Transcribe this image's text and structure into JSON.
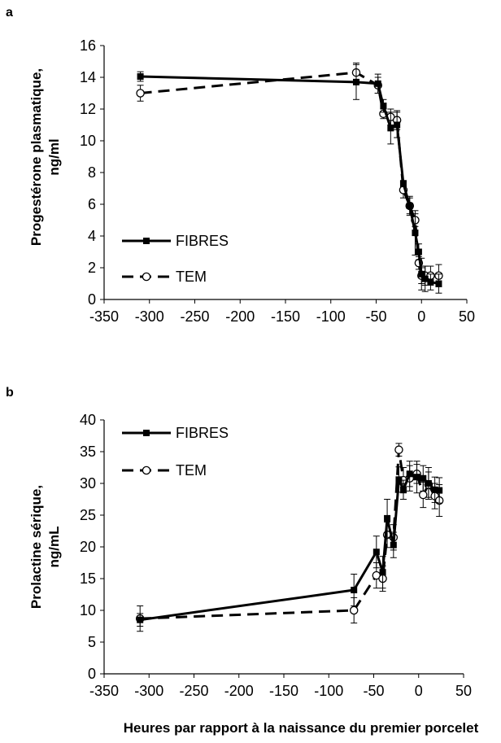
{
  "chart_data": [
    {
      "type": "line",
      "panel_label": "a",
      "ylabel_line1": "Progestérone plasmatique,",
      "ylabel_line2": "ng/ml",
      "xlabel": "",
      "xlim": [
        -350,
        50
      ],
      "ylim": [
        0,
        16
      ],
      "xticks": [
        -350,
        -300,
        -250,
        -200,
        -150,
        -100,
        -50,
        0,
        50
      ],
      "yticks": [
        0,
        2,
        4,
        6,
        8,
        10,
        12,
        14,
        16
      ],
      "grid": false,
      "legend_position": "bottom-left",
      "series": [
        {
          "name": "FIBRES",
          "style": "solid",
          "marker": "filled-square",
          "color": "#000000",
          "x": [
            -310,
            -72,
            -48,
            -42,
            -34,
            -27,
            -20,
            -13,
            -7,
            -3,
            0,
            4,
            10,
            19
          ],
          "y": [
            14.05,
            13.7,
            13.6,
            12.2,
            10.8,
            11.0,
            7.3,
            5.9,
            4.2,
            3.0,
            1.6,
            1.3,
            1.1,
            1.0
          ],
          "err": [
            0.3,
            1.1,
            0.6,
            0.4,
            1.0,
            0.8,
            0.2,
            0.6,
            1.4,
            0.5,
            1.0,
            0.8,
            0.5,
            0.6
          ]
        },
        {
          "name": "TEM",
          "style": "dashed",
          "marker": "open-circle",
          "color": "#000000",
          "x": [
            -310,
            -72,
            -48,
            -42,
            -34,
            -27,
            -20,
            -13,
            -7,
            -3,
            0,
            4,
            10,
            19
          ],
          "y": [
            13.0,
            14.3,
            13.5,
            11.7,
            11.5,
            11.3,
            6.9,
            5.9,
            5.0,
            2.3,
            1.5,
            1.5,
            1.5,
            1.5
          ],
          "err": [
            0.5,
            0.6,
            0.5,
            0.3,
            0.5,
            0.6,
            0.5,
            0.5,
            0.4,
            0.4,
            0.5,
            0.6,
            0.6,
            0.7
          ]
        }
      ]
    },
    {
      "type": "line",
      "panel_label": "b",
      "ylabel_line1": "Prolactine sérique,",
      "ylabel_line2": "ng/mL",
      "xlabel": "Heures par rapport à la naissance du premier porcelet",
      "xlim": [
        -350,
        50
      ],
      "ylim": [
        0,
        40
      ],
      "xticks": [
        -350,
        -300,
        -250,
        -200,
        -150,
        -100,
        -50,
        0,
        50
      ],
      "yticks": [
        0,
        5,
        10,
        15,
        20,
        25,
        30,
        35,
        40
      ],
      "grid": false,
      "legend_position": "top-left",
      "series": [
        {
          "name": "FIBRES",
          "style": "solid",
          "marker": "filled-square",
          "color": "#000000",
          "x": [
            -310,
            -72,
            -47,
            -40,
            -35,
            -28,
            -22,
            -17,
            -10,
            -2,
            5,
            11,
            18,
            23
          ],
          "y": [
            8.5,
            13.2,
            19.2,
            16.0,
            24.5,
            20.3,
            30.6,
            29.0,
            31.5,
            31.0,
            30.8,
            30.0,
            29.0,
            28.9
          ],
          "err": [
            1.0,
            2.5,
            2.5,
            2.5,
            3.0,
            2.0,
            2.0,
            1.5,
            2.0,
            2.5,
            2.0,
            2.5,
            2.0,
            2.0
          ]
        },
        {
          "name": "TEM",
          "style": "dashed",
          "marker": "open-circle",
          "color": "#000000",
          "x": [
            -310,
            -72,
            -47,
            -40,
            -35,
            -28,
            -22,
            -17,
            -10,
            -2,
            5,
            11,
            18,
            23
          ],
          "y": [
            8.7,
            10.0,
            15.5,
            15.0,
            21.9,
            21.5,
            35.3,
            30.5,
            30.8,
            31.5,
            28.2,
            29.8,
            28.0,
            27.3
          ],
          "err": [
            2.0,
            2.0,
            2.0,
            2.0,
            2.0,
            2.0,
            1.0,
            2.0,
            2.0,
            1.5,
            2.0,
            2.0,
            2.0,
            2.5
          ]
        }
      ]
    }
  ]
}
